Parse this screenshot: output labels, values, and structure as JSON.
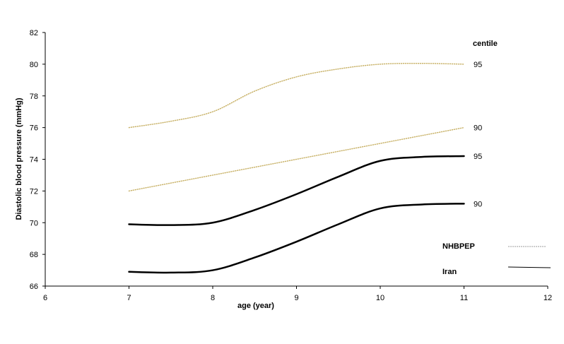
{
  "chart_data": {
    "type": "line",
    "title": "",
    "xlabel": "age (year)",
    "ylabel": "Diastolic blood pressure (mmHg)",
    "xlim": [
      6,
      12
    ],
    "ylim": [
      66,
      82
    ],
    "xticks": [
      6,
      7,
      8,
      9,
      10,
      11,
      12
    ],
    "yticks": [
      66,
      68,
      70,
      72,
      74,
      76,
      78,
      80,
      82
    ],
    "grid": false,
    "centile_heading": "centile",
    "series": [
      {
        "name": "NHBPEP",
        "centile": "95",
        "style": "dotted",
        "color": "#c9b36a",
        "x": [
          7,
          7.5,
          8,
          8.5,
          9,
          9.5,
          10,
          10.5,
          11
        ],
        "y": [
          76,
          76.4,
          77,
          78.3,
          79.2,
          79.7,
          80,
          80.05,
          80
        ]
      },
      {
        "name": "NHBPEP",
        "centile": "90",
        "style": "dotted",
        "color": "#c9b36a",
        "x": [
          7,
          7.5,
          8,
          8.5,
          9,
          9.5,
          10,
          10.5,
          11
        ],
        "y": [
          72,
          72.5,
          73,
          73.5,
          74,
          74.5,
          75,
          75.5,
          76
        ]
      },
      {
        "name": "Iran",
        "centile": "95",
        "style": "solid",
        "color": "#000000",
        "x": [
          7,
          7.5,
          8,
          8.5,
          9,
          9.5,
          10,
          10.5,
          11
        ],
        "y": [
          69.9,
          69.85,
          70,
          70.8,
          71.8,
          72.9,
          73.9,
          74.15,
          74.2
        ]
      },
      {
        "name": "Iran",
        "centile": "90",
        "style": "solid",
        "color": "#000000",
        "x": [
          7,
          7.5,
          8,
          8.5,
          9,
          9.5,
          10,
          10.5,
          11
        ],
        "y": [
          66.9,
          66.85,
          67,
          67.8,
          68.8,
          69.9,
          70.9,
          71.15,
          71.2
        ]
      }
    ],
    "legend": {
      "placement": "bottom-right",
      "entries": [
        {
          "label": "NHBPEP",
          "style": "dotted",
          "color": "#9a9a9a"
        },
        {
          "label": "Iran",
          "style": "solid",
          "color": "#000000"
        }
      ]
    }
  }
}
